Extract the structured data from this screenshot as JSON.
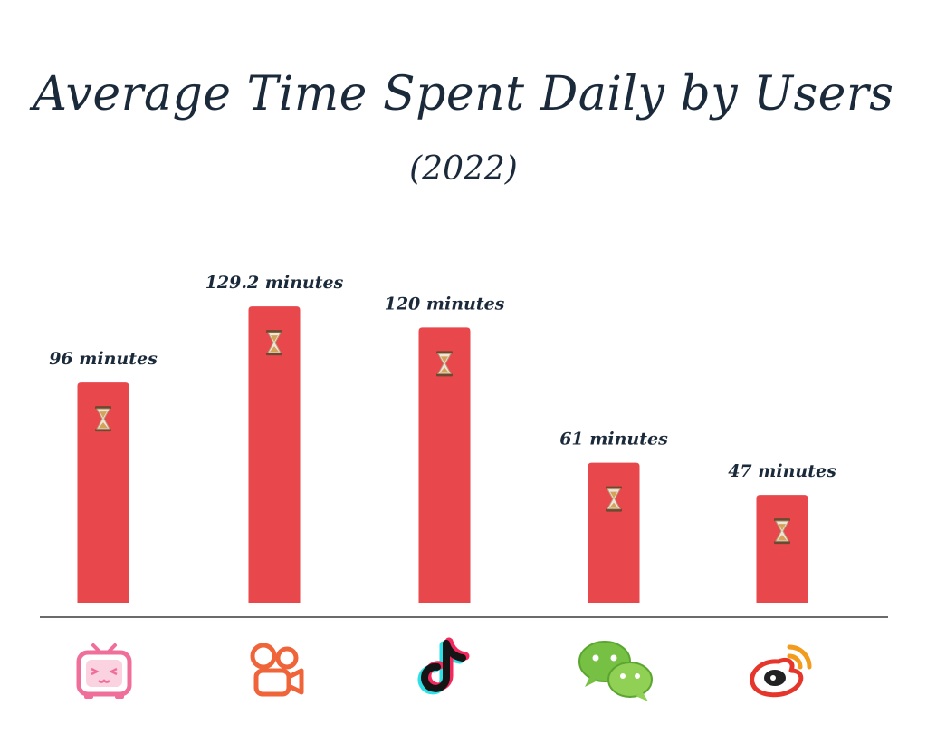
{
  "chart_data": {
    "type": "bar",
    "title": "Average Time Spent Daily by Users",
    "subtitle": "(2022)",
    "categories": [
      "bilibili-icon",
      "kuaishou-icon",
      "tiktok-icon",
      "wechat-icon",
      "weibo-icon"
    ],
    "values": [
      96,
      129.2,
      120,
      61,
      47
    ],
    "value_labels": [
      "96 minutes",
      "129.2 minutes",
      "120 minutes",
      "61 minutes",
      "47 minutes"
    ],
    "unit": "minutes",
    "ylim": [
      0,
      135
    ],
    "grid": false,
    "legend": "none"
  },
  "colors": {
    "bar": "#e8474b",
    "title": "#1b2a3a",
    "axis": "#3a3a3a"
  },
  "bar_icon": "hourglass-icon"
}
